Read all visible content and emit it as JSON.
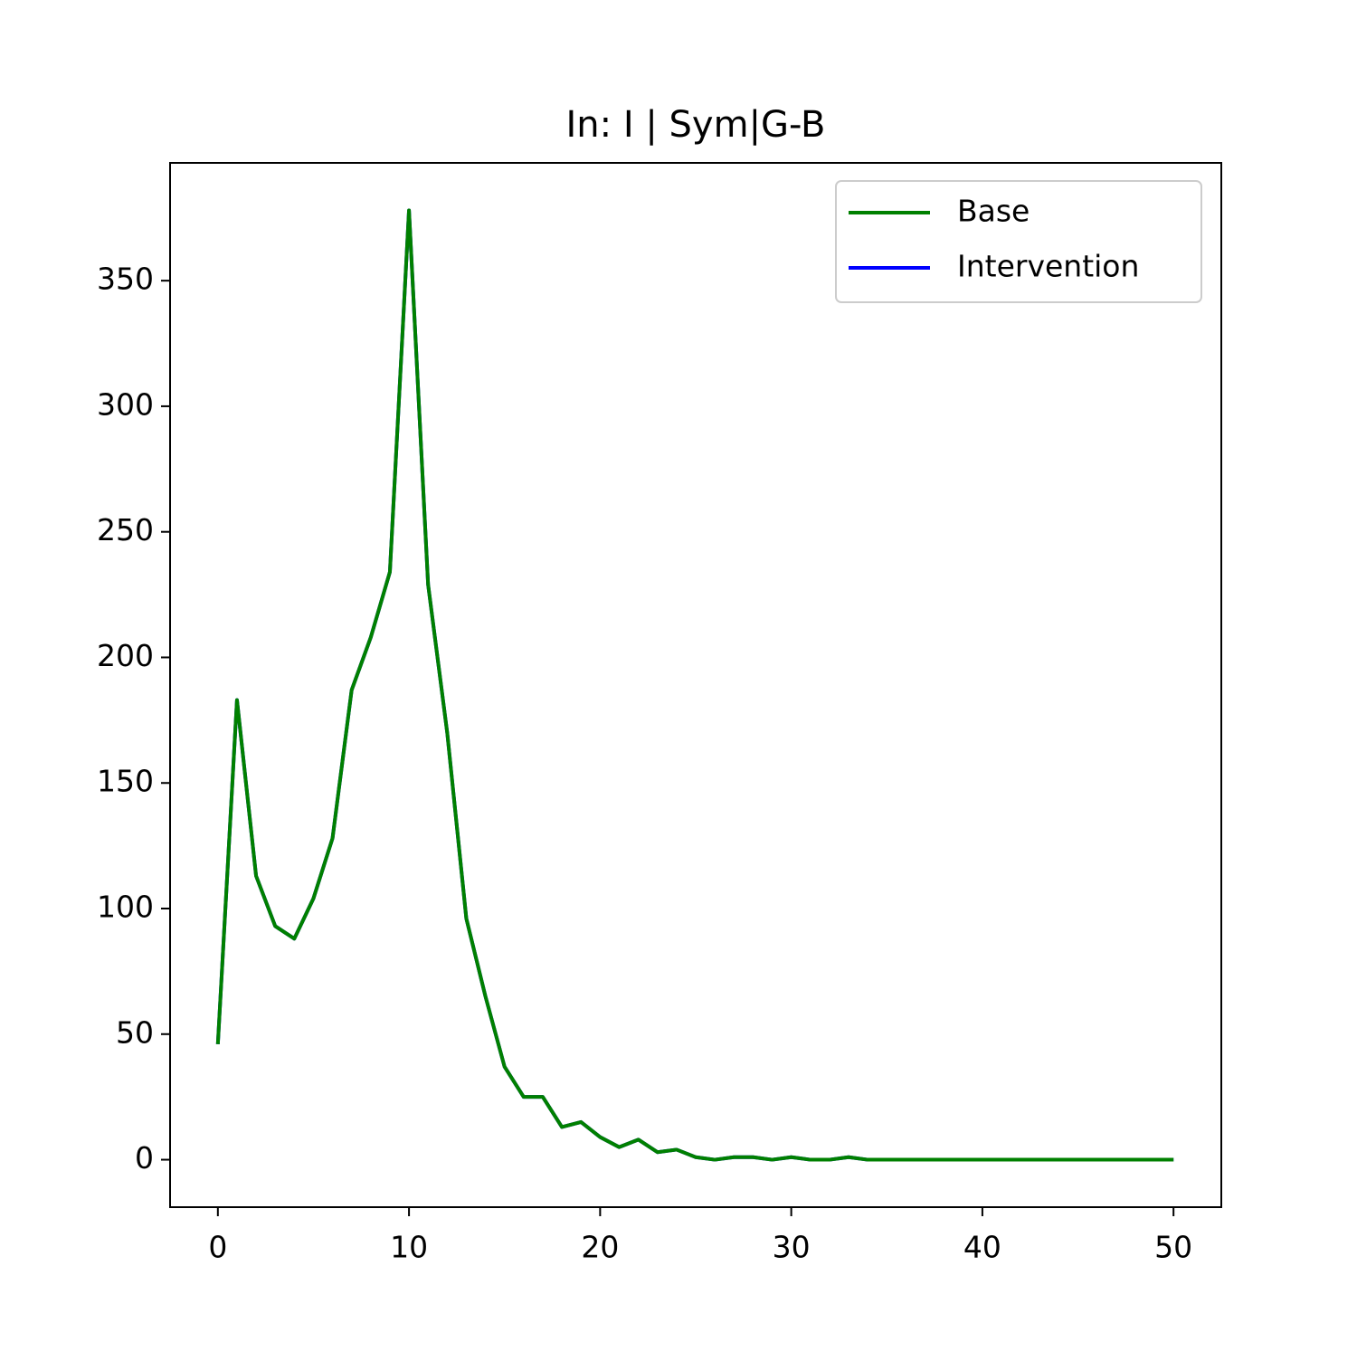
{
  "chart_data": {
    "type": "line",
    "title": "In: I | Sym|G-B",
    "x": [
      0,
      1,
      2,
      3,
      4,
      5,
      6,
      7,
      8,
      9,
      10,
      11,
      12,
      13,
      14,
      15,
      16,
      17,
      18,
      19,
      20,
      21,
      22,
      23,
      24,
      25,
      26,
      27,
      28,
      29,
      30,
      31,
      32,
      33,
      34,
      35,
      36,
      37,
      38,
      39,
      40,
      41,
      42,
      43,
      44,
      45,
      46,
      47,
      48,
      49,
      50
    ],
    "series": [
      {
        "name": "Base",
        "color": "#008000",
        "values": [
          46,
          183,
          113,
          93,
          88,
          104,
          128,
          187,
          208,
          234,
          378,
          229,
          170,
          96,
          65,
          37,
          25,
          25,
          13,
          15,
          9,
          5,
          8,
          3,
          4,
          1,
          0,
          1,
          1,
          0,
          1,
          0,
          0,
          1,
          0,
          0,
          0,
          0,
          0,
          0,
          0,
          0,
          0,
          0,
          0,
          0,
          0,
          0,
          0,
          0,
          0
        ]
      },
      {
        "name": "Intervention",
        "color": "#0000ff",
        "values": [
          46,
          183,
          113,
          93,
          88,
          104,
          128,
          187,
          208,
          234,
          378,
          229,
          170,
          96,
          65,
          37,
          25,
          25,
          13,
          15,
          9,
          5,
          8,
          3,
          4,
          1,
          0,
          1,
          1,
          0,
          1,
          0,
          0,
          1,
          0,
          0,
          0,
          0,
          0,
          0,
          0,
          0,
          0,
          0,
          0,
          0,
          0,
          0,
          0,
          0,
          0
        ]
      }
    ],
    "xlim": [
      -2.5,
      52.5
    ],
    "xticks": [
      0,
      10,
      20,
      30,
      40,
      50
    ],
    "ylim": [
      -18.9,
      396.9
    ],
    "yticks": [
      0,
      50,
      100,
      150,
      200,
      250,
      300,
      350
    ],
    "legend": "upper right"
  }
}
